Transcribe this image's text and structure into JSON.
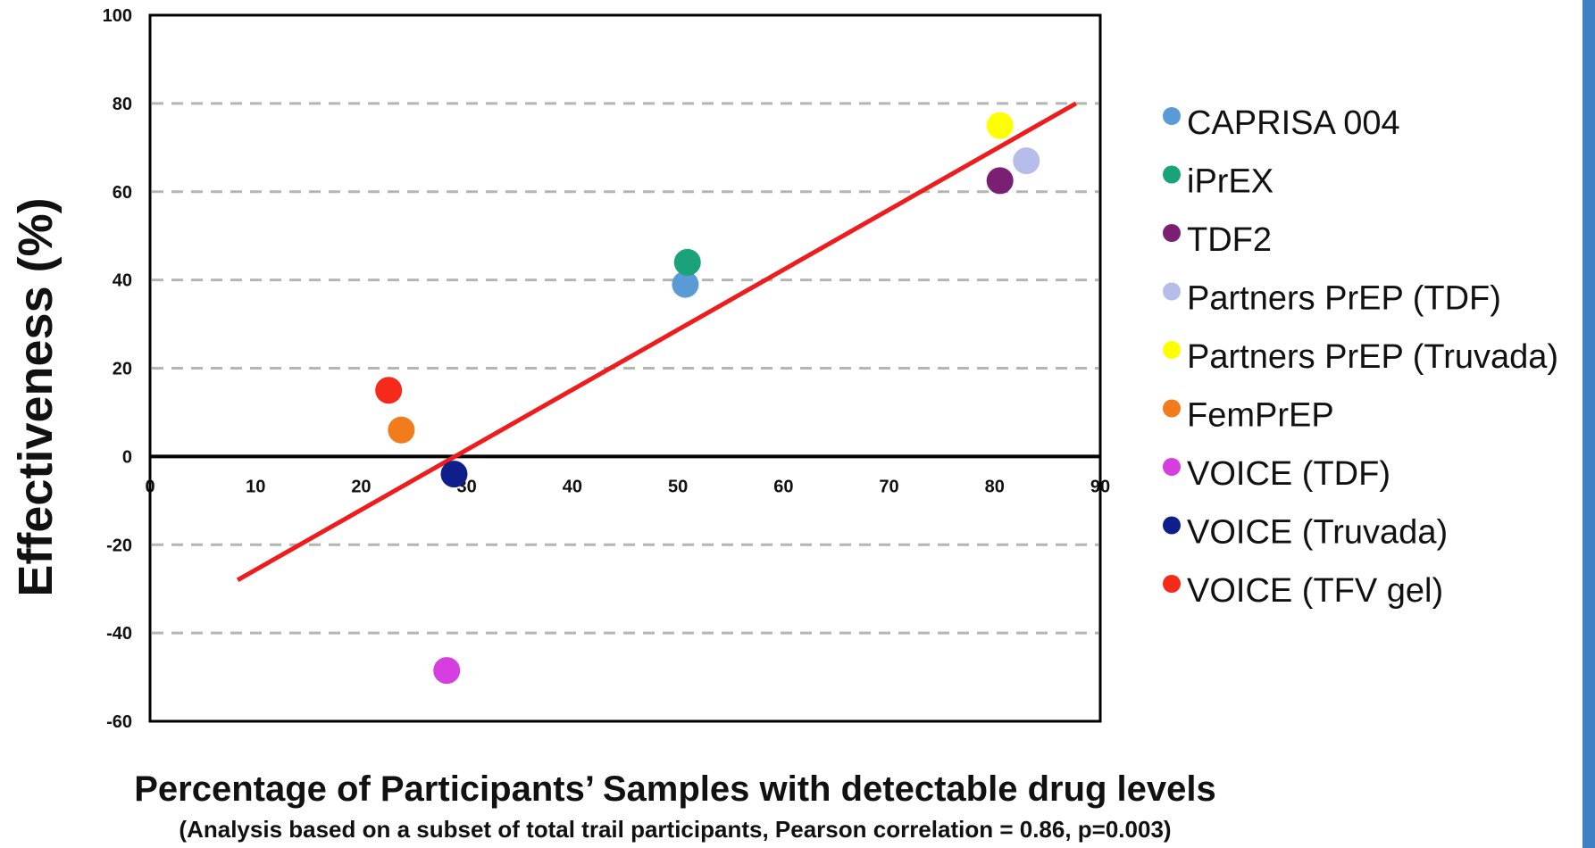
{
  "chart_data": {
    "type": "scatter",
    "ylabel": "Effectiveness (%)",
    "xlabel": "Percentage of Participants’ Samples with detectable drug levels",
    "subtitle": "(Analysis based on a subset of total trail participants, Pearson correlation = 0.86, p=0.003)",
    "xlim": [
      0,
      90
    ],
    "ylim": [
      -60,
      100
    ],
    "x_ticks": [
      "0",
      "10",
      "20",
      "30",
      "40",
      "50",
      "60",
      "70",
      "80",
      "90"
    ],
    "y_ticks": [
      "100",
      "80",
      "60",
      "40",
      "20",
      "0",
      "-20",
      "-40",
      "-60"
    ],
    "grid": "dashed horizontal",
    "legend_position": "right",
    "series": [
      {
        "name": "CAPRISA 004",
        "color": "#5b9bd5",
        "x": 50.7,
        "y": 39
      },
      {
        "name": "iPrEX",
        "color": "#1aa37a",
        "x": 50.9,
        "y": 44
      },
      {
        "name": "TDF2",
        "color": "#7a1f72",
        "x": 80.5,
        "y": 62.5
      },
      {
        "name": "Partners PrEP (TDF)",
        "color": "#b7bdea",
        "x": 83,
        "y": 67
      },
      {
        "name": "Partners PrEP (Truvada)",
        "color": "#ffff00",
        "x": 80.5,
        "y": 75
      },
      {
        "name": "FemPrEP",
        "color": "#f27b1b",
        "x": 23.8,
        "y": 6
      },
      {
        "name": "VOICE (TDF)",
        "color": "#d63ee0",
        "x": 28.1,
        "y": -48.5
      },
      {
        "name": "VOICE (Truvada)",
        "color": "#0e1f8c",
        "x": 28.8,
        "y": -4
      },
      {
        "name": "VOICE (TFV gel)",
        "color": "#f52a1a",
        "x": 22.6,
        "y": 15
      }
    ],
    "trendline": {
      "color": "#ee1c1c",
      "x": [
        8.3,
        87.7
      ],
      "y": [
        -28,
        80
      ]
    }
  }
}
